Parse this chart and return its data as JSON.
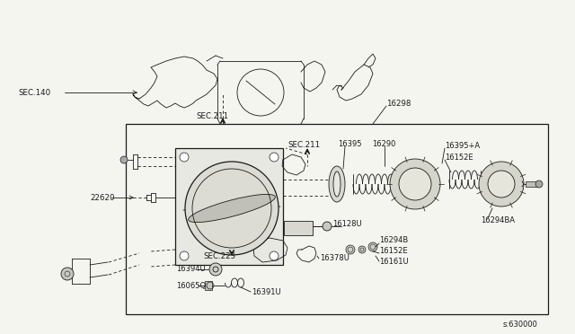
{
  "bg_color": "#f5f5f0",
  "line_color": "#1a1a1a",
  "fig_width": 6.4,
  "fig_height": 3.72,
  "dpi": 100,
  "labels": {
    "SEC140": "SEC.140",
    "SEC211_top": "SEC.211",
    "SEC211_inner": "SEC.211",
    "SEC223": "SEC.223",
    "p16298": "16298",
    "p16395": "16395",
    "p16290": "16290",
    "p16395A": "16395+A",
    "p16152E_top": "16152E",
    "p16294BA": "16294BA",
    "p16128U": "16128U",
    "p16294B": "16294B",
    "p16152E_bot": "16152E",
    "p16161U": "16161U",
    "p16378U": "16378U",
    "p16391U": "16391U",
    "p16065Q": "16065Q",
    "p16394U": "16394U",
    "p22620": "22620",
    "diagram_number": "s:630000"
  }
}
